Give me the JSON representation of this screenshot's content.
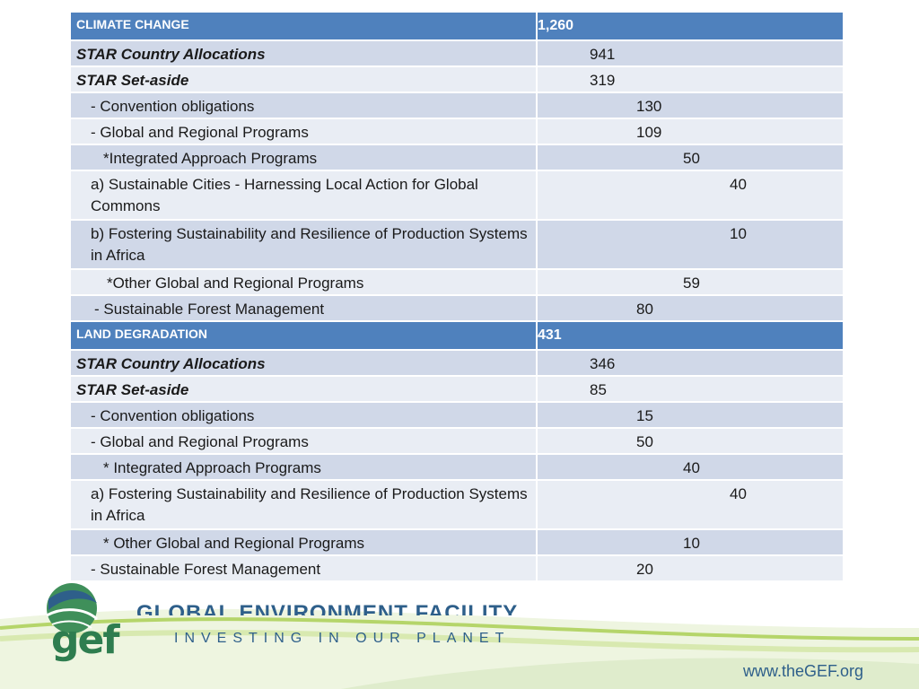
{
  "sections": [
    {
      "header_label": "CLIMATE CHANGE",
      "header_value": "1,260",
      "rows": [
        {
          "label": "STAR Country Allocations",
          "value": "941"
        },
        {
          "label": "STAR Set-aside",
          "value": "319"
        },
        {
          "label": "- Convention obligations",
          "value": "130"
        },
        {
          "label": "- Global and Regional Programs",
          "value": "109"
        },
        {
          "label": "*Integrated Approach Programs",
          "value": "50"
        },
        {
          "label": "a) Sustainable Cities - Harnessing Local Action for Global Commons",
          "value": "40"
        },
        {
          "label": "b) Fostering Sustainability and Resilience of Production Systems in Africa",
          "value": "10"
        },
        {
          "label": "*Other Global and Regional Programs",
          "value": "59"
        },
        {
          "label": "- Sustainable Forest Management",
          "value": "80"
        }
      ]
    },
    {
      "header_label": "LAND DEGRADATION",
      "header_value": "431",
      "rows": [
        {
          "label": "STAR Country Allocations",
          "value": "346"
        },
        {
          "label": "STAR Set-aside",
          "value": "85"
        },
        {
          "label": "- Convention obligations",
          "value": "15"
        },
        {
          "label": "- Global and Regional Programs",
          "value": "50"
        },
        {
          "label": "* Integrated Approach Programs",
          "value": "40"
        },
        {
          "label": "a) Fostering Sustainability and Resilience of Production Systems in Africa",
          "value": "40"
        },
        {
          "label": "* Other Global and Regional Programs",
          "value": "10"
        },
        {
          "label": "- Sustainable Forest Management",
          "value": "20"
        }
      ]
    }
  ],
  "footer": {
    "logo_text": "gef",
    "org_name": "GLOBAL ENVIRONMENT FACILITY",
    "tagline": "INVESTING IN OUR PLANET",
    "url": "www.theGEF.org"
  },
  "colors": {
    "header_bg": "#4f81bd",
    "row_odd": "#d0d8e8",
    "row_even": "#e9edf4",
    "logo_green": "#2e7d4f",
    "logo_blue": "#2e5f8a"
  }
}
